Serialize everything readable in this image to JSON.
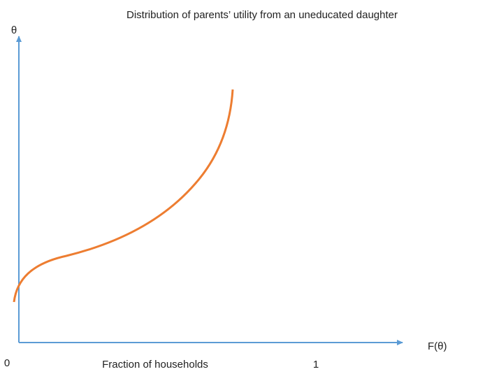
{
  "title": "Distribution of parents’ utility from an uneducated daughter",
  "y_axis_label": "θ",
  "x_axis_label": "F(θ)",
  "x_origin_label": "0",
  "x_description": "Fraction of households",
  "x_end_label": "1"
}
